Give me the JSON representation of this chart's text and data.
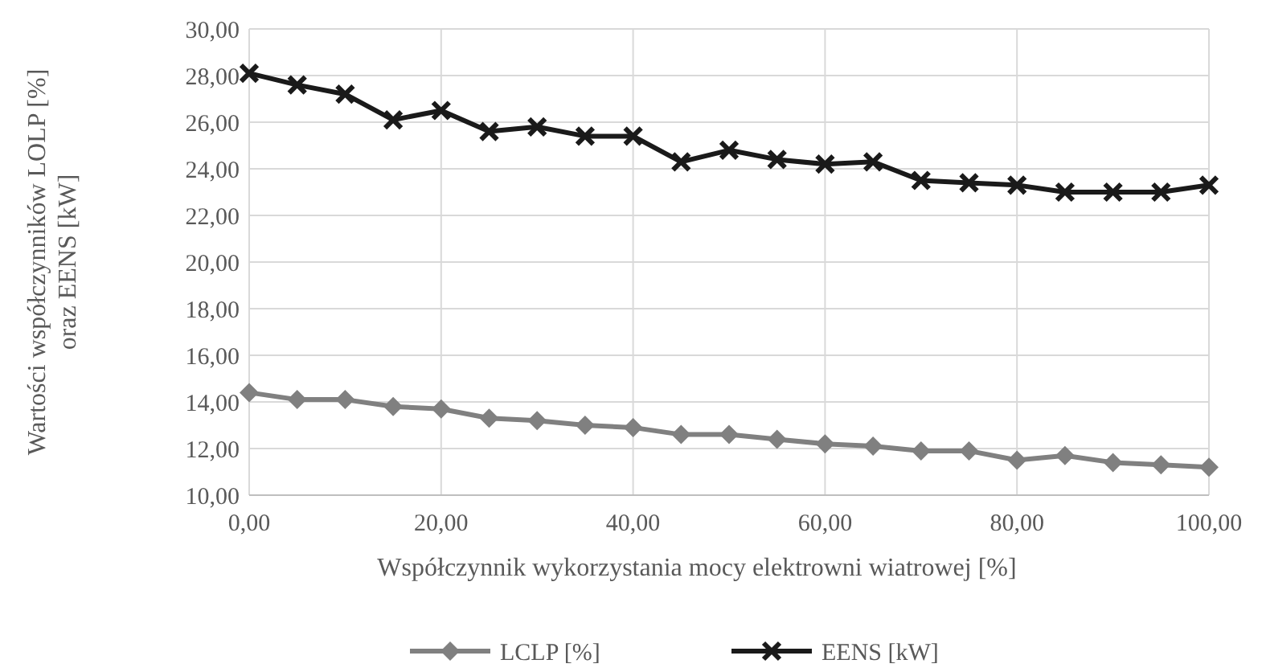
{
  "chart_data": {
    "type": "line",
    "xlabel": "Współczynnik  wykorzystania mocy elektrowni wiatrowej [%]",
    "ylabel": "Wartości współczynników LOLP [%]\noraz EENS [kW]",
    "x": [
      0,
      5,
      10,
      15,
      20,
      25,
      30,
      35,
      40,
      45,
      50,
      55,
      60,
      65,
      70,
      75,
      80,
      85,
      90,
      95,
      100
    ],
    "series": [
      {
        "name": "LCLP [%]",
        "color": "#808080",
        "marker": "diamond",
        "values": [
          14.4,
          14.1,
          14.1,
          13.8,
          13.7,
          13.3,
          13.2,
          13.0,
          12.9,
          12.6,
          12.6,
          12.4,
          12.2,
          12.1,
          11.9,
          11.9,
          11.5,
          11.7,
          11.4,
          11.3,
          11.2
        ]
      },
      {
        "name": "EENS [kW]",
        "color": "#1a1a1a",
        "marker": "cross",
        "values": [
          28.1,
          27.6,
          27.2,
          26.1,
          26.5,
          25.6,
          25.8,
          25.4,
          25.4,
          24.3,
          24.8,
          24.4,
          24.2,
          24.3,
          23.5,
          23.4,
          23.3,
          23.0,
          23.0,
          23.0,
          23.3
        ]
      }
    ],
    "xlim": [
      0,
      100
    ],
    "xticks": [
      {
        "value": 0,
        "label": "0,00"
      },
      {
        "value": 20,
        "label": "20,00"
      },
      {
        "value": 40,
        "label": "40,00"
      },
      {
        "value": 60,
        "label": "60,00"
      },
      {
        "value": 80,
        "label": "80,00"
      },
      {
        "value": 100,
        "label": "100,00"
      }
    ],
    "ylim": [
      10,
      30
    ],
    "yticks": [
      {
        "value": 10,
        "label": "10,00"
      },
      {
        "value": 12,
        "label": "12,00"
      },
      {
        "value": 14,
        "label": "14,00"
      },
      {
        "value": 16,
        "label": "16,00"
      },
      {
        "value": 18,
        "label": "18,00"
      },
      {
        "value": 20,
        "label": "20,00"
      },
      {
        "value": 22,
        "label": "22,00"
      },
      {
        "value": 24,
        "label": "24,00"
      },
      {
        "value": 26,
        "label": "26,00"
      },
      {
        "value": 28,
        "label": "28,00"
      },
      {
        "value": 30,
        "label": "30,00"
      }
    ],
    "grid": true,
    "legend": "bottom",
    "line_style": "solid"
  }
}
